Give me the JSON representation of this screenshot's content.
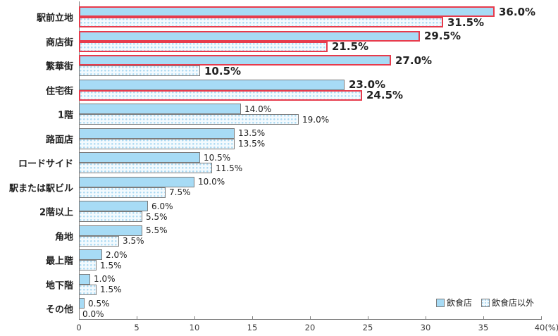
{
  "chart_data": {
    "type": "bar",
    "orientation": "horizontal",
    "title": "",
    "xlabel": "(%)",
    "xlim": [
      0,
      40
    ],
    "x_ticks": [
      0,
      5,
      10,
      15,
      20,
      25,
      30,
      35,
      40
    ],
    "x_tick_labels": [
      "0",
      "5",
      "10",
      "15",
      "20",
      "25",
      "30",
      "35",
      "40(%)"
    ],
    "grid": false,
    "legend_position": "bottom-right",
    "value_label_suffix": "%",
    "categories": [
      "駅前立地",
      "商店街",
      "繁華街",
      "住宅街",
      "1階",
      "路面店",
      "ロードサイド",
      "駅または駅ビル",
      "2階以上",
      "角地",
      "最上階",
      "地下階",
      "その他"
    ],
    "series": [
      {
        "name": "飲食店",
        "pattern": "solid",
        "values": [
          36.0,
          29.5,
          27.0,
          23.0,
          14.0,
          13.5,
          10.5,
          10.0,
          6.0,
          5.5,
          2.0,
          1.0,
          0.5
        ],
        "red_outline_indices": [
          0,
          1,
          2
        ]
      },
      {
        "name": "飲食店以外",
        "pattern": "dotted",
        "values": [
          31.5,
          21.5,
          10.5,
          24.5,
          19.0,
          13.5,
          11.5,
          7.5,
          5.5,
          3.5,
          1.5,
          1.5,
          0.0
        ],
        "red_outline_indices": [
          0,
          1,
          3
        ]
      }
    ],
    "emphasized_category_indices": [
      0,
      1,
      2,
      3
    ],
    "colors": {
      "solid_fill": "#A7DBF5",
      "dotted_bg": "#F3FAFE",
      "dotted_dot": "#ABDAF3",
      "bar_border": "#7C7C7C",
      "red_outline": "#E73B4C",
      "axis": "#808080",
      "tick_text": "#3C3C3C",
      "text": "#222222"
    }
  }
}
